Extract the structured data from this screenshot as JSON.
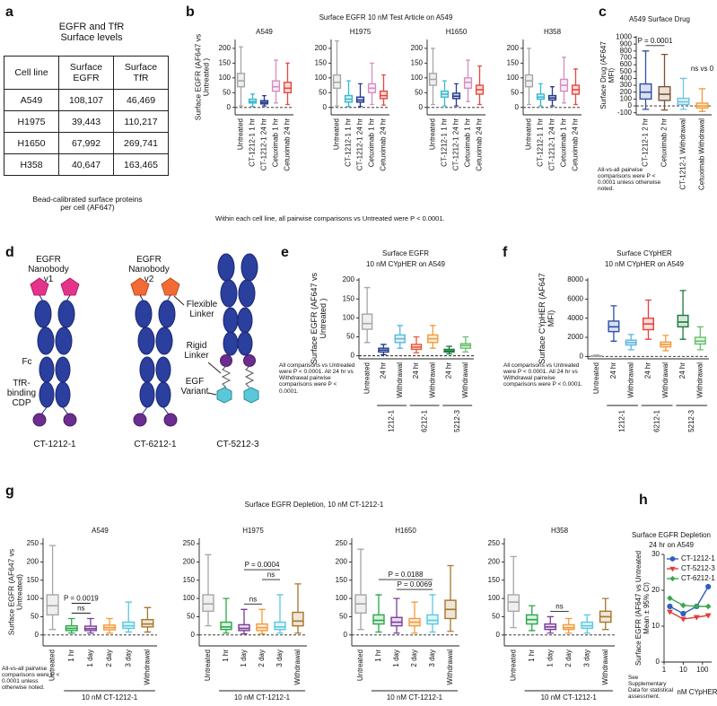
{
  "panel_labels": [
    "a",
    "b",
    "c",
    "d",
    "e",
    "f",
    "g",
    "h"
  ],
  "table": {
    "title": "EGFR and TfR Surface levels",
    "columns": [
      "Cell line",
      "Surface EGFR",
      "Surface TfR"
    ],
    "rows": [
      [
        "A549",
        "108,107",
        "46,469"
      ],
      [
        "H1975",
        "39,443",
        "110,217"
      ],
      [
        "H1650",
        "67,992",
        "269,741"
      ],
      [
        "H358",
        "40,647",
        "163,465"
      ]
    ],
    "caption": "Bead-calibrated surface proteins per cell (AF647)"
  },
  "diagram": {
    "nanobody_v1": "EGFR Nanobody v1",
    "nanobody_v2": "EGFR Nanobody v2",
    "fc": "Fc",
    "cdp": "TfR-binding CDP",
    "flexible_linker": "Flexible Linker",
    "rigid_linker": "Rigid Linker",
    "egf_variant": "EGF Variant",
    "names": [
      "CT-1212-1",
      "CT-6212-1",
      "CT-5212-3"
    ]
  },
  "chart_data": [
    {
      "type": "box",
      "suptitle": "Surface EGFR 10 nM Test Article on A549",
      "title": "A549",
      "ylabel": "Surface EGFR (AF647 vs Untreated )",
      "note": "Within each cell line, all pairwise comparisons vs Untreated were P < 0.0001.",
      "categories": [
        "Untreated",
        "CT-1212-1 1 hr",
        "CT-1212-1 24 hr",
        "Cetuximab 1 hr",
        "Cetuximab 24 hr"
      ],
      "colors": [
        "#a6a6a6",
        "#35b8d3",
        "#24398f",
        "#d48fbf",
        "#e8453c"
      ],
      "boxes": [
        [
          5,
          70,
          90,
          115,
          205
        ],
        [
          3,
          15,
          20,
          28,
          45
        ],
        [
          5,
          12,
          17,
          23,
          40
        ],
        [
          15,
          55,
          70,
          90,
          160
        ],
        [
          10,
          50,
          65,
          85,
          150
        ]
      ],
      "ylim": [
        -25,
        230
      ],
      "yticks": [
        0,
        50,
        100,
        150,
        200
      ]
    },
    {
      "type": "box",
      "title": "H1975",
      "categories": [
        "Untreated",
        "CT-1212-1 1 hr",
        "CT-1212-1 24 hr",
        "Cetuximab 1 hr",
        "Cetuximab 24 hr"
      ],
      "colors": [
        "#a6a6a6",
        "#35b8d3",
        "#24398f",
        "#d48fbf",
        "#e8453c"
      ],
      "boxes": [
        [
          5,
          65,
          85,
          110,
          225
        ],
        [
          3,
          18,
          28,
          40,
          90
        ],
        [
          3,
          18,
          25,
          35,
          80
        ],
        [
          10,
          50,
          65,
          80,
          150
        ],
        [
          8,
          30,
          40,
          55,
          110
        ]
      ],
      "ylim": [
        -25,
        230
      ],
      "yticks": [
        0,
        50,
        100,
        150,
        200
      ]
    },
    {
      "type": "box",
      "title": "H1650",
      "categories": [
        "Untreated",
        "CT-1212-1 1 hr",
        "CT-1212-1 24 hr",
        "Cetuximab 1 hr",
        "Cetuximab 24 hr"
      ],
      "colors": [
        "#a6a6a6",
        "#35b8d3",
        "#24398f",
        "#d48fbf",
        "#e8453c"
      ],
      "boxes": [
        [
          10,
          75,
          95,
          115,
          200
        ],
        [
          5,
          35,
          45,
          55,
          90
        ],
        [
          5,
          30,
          38,
          48,
          80
        ],
        [
          20,
          65,
          85,
          100,
          160
        ],
        [
          10,
          45,
          60,
          75,
          140
        ]
      ],
      "ylim": [
        -25,
        230
      ],
      "yticks": [
        0,
        50,
        100,
        150,
        200
      ]
    },
    {
      "type": "box",
      "title": "H358",
      "categories": [
        "Untreated",
        "CT-1212-1 1 hr",
        "CT-1212-1 24 hr",
        "Cetuximab 1 hr",
        "Cetuximab 24 hr"
      ],
      "colors": [
        "#a6a6a6",
        "#35b8d3",
        "#24398f",
        "#d48fbf",
        "#e8453c"
      ],
      "boxes": [
        [
          10,
          70,
          90,
          110,
          200
        ],
        [
          5,
          28,
          35,
          45,
          80
        ],
        [
          5,
          25,
          32,
          40,
          70
        ],
        [
          15,
          55,
          75,
          95,
          170
        ],
        [
          10,
          45,
          60,
          75,
          130
        ]
      ],
      "ylim": [
        -25,
        230
      ],
      "yticks": [
        0,
        50,
        100,
        150,
        200
      ]
    },
    {
      "type": "box",
      "title": "A549 Surface Drug",
      "ylabel": "Surface Drug (AF647 MFI)",
      "note": "All-vs-all pairwise comparisons were P < 0.0001 unless otherwise noted.",
      "categories": [
        "CT-1212-1 2 hr",
        "Cetuximab 2 hr",
        "CT-1212-1 Withdrawal",
        "Cetuximab Withdrawal"
      ],
      "colors": [
        "#2f4fa6",
        "#7d5230",
        "#6ec2e0",
        "#f39a3a"
      ],
      "boxes": [
        [
          -50,
          100,
          200,
          320,
          800
        ],
        [
          -60,
          80,
          170,
          280,
          750
        ],
        [
          -50,
          20,
          60,
          110,
          400
        ],
        [
          -80,
          -30,
          0,
          40,
          250
        ]
      ],
      "annotations": [
        {
          "label": "P = 0.0001",
          "span": [
            0,
            1
          ]
        },
        {
          "label": "ns vs 0",
          "span": [
            3,
            3
          ]
        }
      ],
      "ylim": [
        -130,
        1020
      ],
      "yticks": [
        -100,
        0,
        100,
        200,
        300,
        400,
        500,
        600,
        700,
        800,
        900,
        1000
      ]
    },
    {
      "type": "box",
      "title": "Surface EGFR",
      "subtitle": "10 nM CYpHER on A549",
      "ylabel": "Surface EGFR (AF647 vs Untreated )",
      "note": "All comparisons vs Untreated were P < 0.0001. All 24 hr vs Withdrawal pairwise comparisons were P < 0.0001.",
      "categories": [
        "Untreated",
        "24 hr",
        "Withdrawal",
        "24 hr",
        "Withdrawal",
        "24 hr",
        "Withdrawal"
      ],
      "colors": [
        "#a6a6a6",
        "#24398f",
        "#5bb6e0",
        "#e8553c",
        "#f39a3a",
        "#1a7a3c",
        "#66bf6a"
      ],
      "boxes": [
        [
          35,
          70,
          85,
          110,
          180
        ],
        [
          3,
          10,
          15,
          20,
          30
        ],
        [
          20,
          35,
          45,
          55,
          80
        ],
        [
          8,
          17,
          23,
          30,
          50
        ],
        [
          20,
          35,
          45,
          55,
          80
        ],
        [
          5,
          10,
          13,
          17,
          25
        ],
        [
          10,
          20,
          27,
          32,
          50
        ]
      ],
      "groups": [
        {
          "label": "1212-1",
          "span": [
            1,
            2
          ]
        },
        {
          "label": "6212-1",
          "span": [
            3,
            4
          ]
        },
        {
          "label": "5212-3",
          "span": [
            5,
            6
          ]
        }
      ],
      "ylim": [
        -8,
        205
      ],
      "yticks": [
        0,
        50,
        100,
        150,
        200
      ]
    },
    {
      "type": "box",
      "title": "Surface CYpHER",
      "subtitle": "10 nM CYpHER on A549",
      "ylabel": "Surface CYpHER (AF647 MFI)",
      "note": "All comparisons vs Untreated were P < 0.0001. All 24 hr vs Withdrawal pairwise comparisons were P < 0.0001.",
      "categories": [
        "Untreated",
        "24 hr",
        "Withdrawal",
        "24 hr",
        "Withdrawal",
        "24 hr",
        "Withdrawal"
      ],
      "colors": [
        "#a6a6a6",
        "#2f4fa6",
        "#5bb6e0",
        "#e8403a",
        "#f39a3a",
        "#1a7a3c",
        "#66bf6a"
      ],
      "boxes": [
        [
          0,
          10,
          30,
          60,
          150
        ],
        [
          1600,
          2600,
          3100,
          3700,
          5300
        ],
        [
          700,
          1200,
          1450,
          1700,
          2300
        ],
        [
          1800,
          2800,
          3400,
          4000,
          5900
        ],
        [
          600,
          1000,
          1250,
          1500,
          2200
        ],
        [
          1800,
          3100,
          3600,
          4300,
          6900
        ],
        [
          700,
          1300,
          1600,
          2000,
          3100
        ]
      ],
      "groups": [
        {
          "label": "1212-1",
          "span": [
            1,
            2
          ]
        },
        {
          "label": "6212-1",
          "span": [
            3,
            4
          ]
        },
        {
          "label": "5212-3",
          "span": [
            5,
            6
          ]
        }
      ],
      "ylim": [
        -250,
        8200
      ],
      "yticks": [
        0,
        2000,
        4000,
        6000,
        8000
      ]
    },
    {
      "type": "box",
      "suptitle": "Surface EGFR Depletion, 10 nM CT-1212-1",
      "title": "A549",
      "ylabel": "Surface EGFR (AF647 vs Untreated)",
      "note": "All-vs-all pairwise comparisons were P < 0.0001 unless otherwise noted.",
      "categories": [
        "Untreated",
        "1 hr",
        "1 day",
        "2 day",
        "3 day",
        "Withdrawal"
      ],
      "colors": [
        "#a6a6a6",
        "#2aa84a",
        "#7a3d99",
        "#f39a3a",
        "#5ac8e0",
        "#a6772a"
      ],
      "boxes": [
        [
          15,
          55,
          80,
          110,
          245
        ],
        [
          5,
          12,
          18,
          25,
          45
        ],
        [
          5,
          12,
          17,
          24,
          45
        ],
        [
          5,
          14,
          20,
          27,
          45
        ],
        [
          8,
          18,
          25,
          35,
          90
        ],
        [
          8,
          22,
          30,
          42,
          75
        ]
      ],
      "annotations": [
        {
          "label": "ns",
          "span": [
            1,
            2
          ]
        },
        {
          "label": "P = 0.0019",
          "span": [
            1,
            2
          ]
        }
      ],
      "groups": [
        {
          "label": "10 nM CT-1212-1",
          "span": [
            1,
            5
          ]
        }
      ],
      "ylim": [
        -30,
        265
      ],
      "yticks": [
        0,
        50,
        100,
        150,
        200,
        250
      ]
    },
    {
      "type": "box",
      "title": "H1975",
      "categories": [
        "Untreated",
        "1 hr",
        "1 day",
        "2 day",
        "3 day",
        "Withdrawal"
      ],
      "colors": [
        "#a6a6a6",
        "#2aa84a",
        "#7a3d99",
        "#f39a3a",
        "#5ac8e0",
        "#a6772a"
      ],
      "boxes": [
        [
          25,
          65,
          85,
          110,
          220
        ],
        [
          5,
          15,
          22,
          35,
          100
        ],
        [
          3,
          12,
          18,
          28,
          70
        ],
        [
          3,
          12,
          20,
          30,
          70
        ],
        [
          5,
          15,
          22,
          35,
          110
        ],
        [
          5,
          25,
          38,
          62,
          140
        ]
      ],
      "annotations": [
        {
          "label": "ns",
          "span": [
            2,
            3
          ]
        },
        {
          "label": "ns",
          "span": [
            3,
            4
          ]
        },
        {
          "label": "P = 0.0004",
          "span": [
            2,
            4
          ]
        }
      ],
      "groups": [
        {
          "label": "10 nM CT-1212-1",
          "span": [
            1,
            5
          ]
        }
      ],
      "ylim": [
        -30,
        265
      ],
      "yticks": [
        0,
        50,
        100,
        150,
        200,
        250
      ]
    },
    {
      "type": "box",
      "title": "H1650",
      "categories": [
        "Untreated",
        "1 hr",
        "1 day",
        "2 day",
        "3 day",
        "Withdrawal"
      ],
      "colors": [
        "#a6a6a6",
        "#2aa84a",
        "#7a3d99",
        "#f39a3a",
        "#5ac8e0",
        "#a6772a"
      ],
      "boxes": [
        [
          15,
          60,
          85,
          110,
          235
        ],
        [
          8,
          30,
          40,
          55,
          110
        ],
        [
          5,
          25,
          35,
          48,
          100
        ],
        [
          5,
          25,
          35,
          45,
          90
        ],
        [
          8,
          30,
          40,
          55,
          110
        ],
        [
          10,
          45,
          70,
          95,
          190
        ]
      ],
      "annotations": [
        {
          "label": "P = 0.0069",
          "span": [
            2,
            4
          ]
        },
        {
          "label": "P = 0.0188",
          "span": [
            1,
            4
          ]
        }
      ],
      "groups": [
        {
          "label": "10 nM CT-1212-1",
          "span": [
            1,
            5
          ]
        }
      ],
      "ylim": [
        -30,
        265
      ],
      "yticks": [
        0,
        50,
        100,
        150,
        200,
        250
      ]
    },
    {
      "type": "box",
      "title": "H358",
      "categories": [
        "Untreated",
        "1 hr",
        "1 day",
        "2 day",
        "3 day",
        "Withdrawal"
      ],
      "colors": [
        "#a6a6a6",
        "#2aa84a",
        "#7a3d99",
        "#f39a3a",
        "#5ac8e0",
        "#a6772a"
      ],
      "boxes": [
        [
          20,
          65,
          90,
          110,
          215
        ],
        [
          12,
          30,
          42,
          55,
          80
        ],
        [
          5,
          15,
          22,
          30,
          50
        ],
        [
          5,
          15,
          20,
          28,
          45
        ],
        [
          5,
          18,
          25,
          35,
          55
        ],
        [
          15,
          35,
          50,
          65,
          100
        ]
      ],
      "annotations": [
        {
          "label": "ns",
          "span": [
            2,
            3
          ]
        }
      ],
      "groups": [
        {
          "label": "10 nM CT-1212-1",
          "span": [
            1,
            5
          ]
        }
      ],
      "ylim": [
        -30,
        265
      ],
      "yticks": [
        0,
        50,
        100,
        150,
        200,
        250
      ]
    },
    {
      "type": "line",
      "title": "Surface EGFR Depletion",
      "subtitle": "24 hr on A549",
      "ylabel": "Surface EGFR (AF647 vs Untreated Mean ± 95% CI)",
      "xlabel": "nM CYpHER",
      "note": "See Supplementary Data for statistical assessment.",
      "x": [
        2,
        10,
        50,
        200
      ],
      "xscale": "log",
      "xlim": [
        1,
        300
      ],
      "xticks": [
        1,
        10,
        100
      ],
      "ylim": [
        0,
        30
      ],
      "yticks": [
        0,
        10,
        20,
        30
      ],
      "legend": "upper left",
      "series": [
        {
          "name": "CT-1212-1",
          "color": "#2f5fbf",
          "marker": "circle",
          "values": [
            15.5,
            13.5,
            15.5,
            21
          ]
        },
        {
          "name": "CT-5212-3",
          "color": "#e0403a",
          "marker": "triangle-down",
          "values": [
            14,
            12,
            12.5,
            13
          ]
        },
        {
          "name": "CT-6212-1",
          "color": "#3aa851",
          "marker": "diamond",
          "values": [
            17.8,
            15.8,
            15.5,
            15.5
          ]
        }
      ]
    }
  ]
}
